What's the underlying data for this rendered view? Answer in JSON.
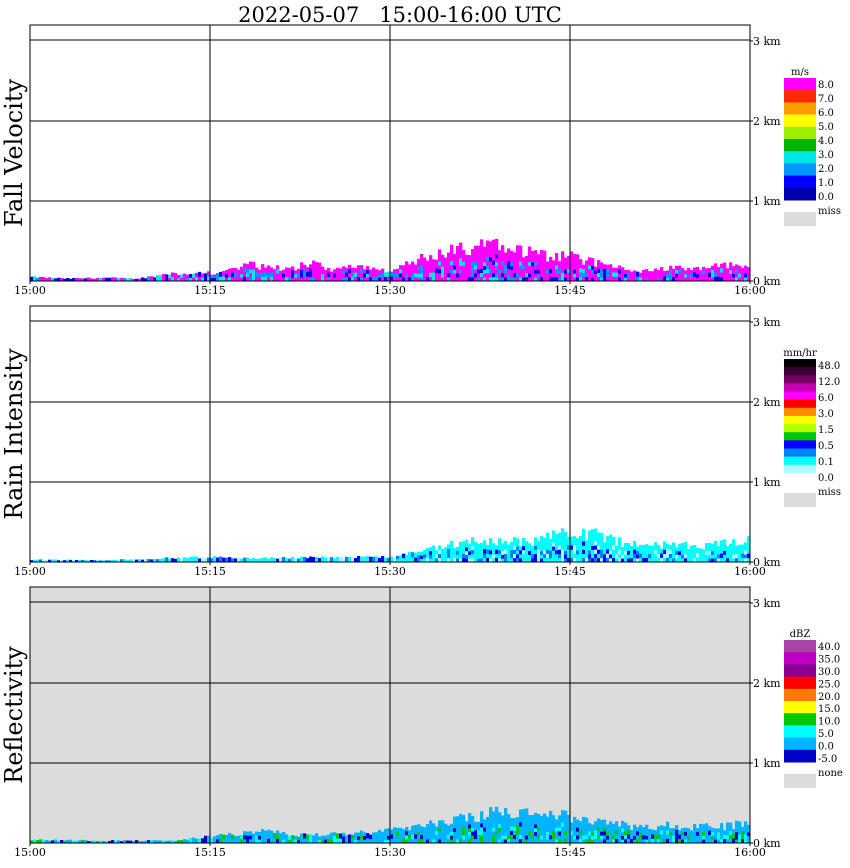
{
  "title": "2022-05-07   15:00-16:00 UTC",
  "x_ticks": [
    "15:00",
    "15:15",
    "15:30",
    "15:45",
    "16:00"
  ],
  "y_ticks": [
    "0 km",
    "1 km",
    "2 km",
    "3 km"
  ],
  "colors": {
    "missing": "#dcdcdc",
    "frame": "#000000",
    "background": "#ffffff"
  },
  "chart_data": [
    {
      "type": "heatmap",
      "title": "Fall Velocity",
      "xlabel": "",
      "ylabel": "Fall Velocity",
      "x_range": [
        "15:00",
        "16:00"
      ],
      "y_range_km": [
        0,
        3.2
      ],
      "grid": true,
      "legend": {
        "unit": "m/s",
        "labels": [
          "8.0",
          "7.0",
          "6.0",
          "5.0",
          "4.0",
          "3.0",
          "2.0",
          "1.0",
          "0.0"
        ],
        "colors": [
          "#ff00ff",
          "#ff2a00",
          "#ff9c00",
          "#ffff00",
          "#9bf000",
          "#00b400",
          "#00e6e6",
          "#0096ff",
          "#0000ff",
          "#0000aa"
        ],
        "miss_label": "miss"
      },
      "echo": {
        "max_top_km": 0.45,
        "dominant_colors": [
          "#ff00ff",
          "#0000ff",
          "#00e6e6",
          "#0096ff"
        ],
        "profile": [
          [
            0,
            0.05
          ],
          [
            5,
            0.03
          ],
          [
            10,
            0.04
          ],
          [
            15,
            0.03
          ],
          [
            20,
            0.1
          ],
          [
            25,
            0.1
          ],
          [
            28,
            0.13
          ],
          [
            30,
            0.2
          ],
          [
            33,
            0.18
          ],
          [
            36,
            0.15
          ],
          [
            39,
            0.22
          ],
          [
            42,
            0.15
          ],
          [
            45,
            0.2
          ],
          [
            48,
            0.15
          ],
          [
            50,
            0.1
          ],
          [
            52,
            0.2
          ],
          [
            55,
            0.3
          ],
          [
            57,
            0.35
          ],
          [
            60,
            0.4
          ],
          [
            62,
            0.42
          ],
          [
            65,
            0.45
          ],
          [
            67,
            0.38
          ],
          [
            70,
            0.35
          ],
          [
            73,
            0.3
          ],
          [
            75,
            0.3
          ],
          [
            78,
            0.25
          ],
          [
            80,
            0.2
          ],
          [
            83,
            0.15
          ],
          [
            85,
            0.12
          ],
          [
            88,
            0.15
          ],
          [
            90,
            0.18
          ],
          [
            93,
            0.15
          ],
          [
            95,
            0.18
          ],
          [
            98,
            0.2
          ],
          [
            100,
            0.22
          ]
        ]
      }
    },
    {
      "type": "heatmap",
      "title": "Rain Intensity",
      "xlabel": "",
      "ylabel": "Rain Intensity",
      "x_range": [
        "15:00",
        "16:00"
      ],
      "y_range_km": [
        0,
        3.2
      ],
      "grid": true,
      "legend": {
        "unit": "mm/hr",
        "labels": [
          "48.0",
          "12.0",
          "6.0",
          "3.0",
          "1.5",
          "0.5",
          "0.1",
          "0.0"
        ],
        "colors": [
          "#000000",
          "#3c0032",
          "#780064",
          "#c800b4",
          "#ff00ff",
          "#ff0000",
          "#ff8c00",
          "#ffff00",
          "#b4ff00",
          "#00c800",
          "#0000ff",
          "#0080ff",
          "#00ffff",
          "#aaffff",
          "#ffffff"
        ],
        "miss_label": "miss"
      },
      "echo": {
        "max_top_km": 0.5,
        "dominant_colors": [
          "#00ffff",
          "#aaffff",
          "#0000ff",
          "#0080ff"
        ],
        "profile": [
          [
            0,
            0.03
          ],
          [
            10,
            0.02
          ],
          [
            20,
            0.05
          ],
          [
            25,
            0.06
          ],
          [
            30,
            0.05
          ],
          [
            35,
            0.05
          ],
          [
            40,
            0.06
          ],
          [
            45,
            0.06
          ],
          [
            50,
            0.06
          ],
          [
            55,
            0.15
          ],
          [
            58,
            0.2
          ],
          [
            62,
            0.28
          ],
          [
            66,
            0.25
          ],
          [
            70,
            0.25
          ],
          [
            74,
            0.35
          ],
          [
            78,
            0.35
          ],
          [
            82,
            0.25
          ],
          [
            86,
            0.2
          ],
          [
            90,
            0.22
          ],
          [
            94,
            0.2
          ],
          [
            98,
            0.25
          ],
          [
            100,
            0.28
          ]
        ]
      }
    },
    {
      "type": "heatmap",
      "title": "Reflectivity",
      "xlabel": "",
      "ylabel": "Reflectivity",
      "x_range": [
        "15:00",
        "16:00"
      ],
      "y_range_km": [
        0,
        3.2
      ],
      "grid": true,
      "legend": {
        "unit": "dBZ",
        "labels": [
          "40.0",
          "35.0",
          "30.0",
          "25.0",
          "20.0",
          "15.0",
          "10.0",
          "5.0",
          "0.0",
          "-5.0"
        ],
        "colors": [
          "#aa44aa",
          "#c000c0",
          "#8c0096",
          "#ff0000",
          "#ff7a00",
          "#ffff00",
          "#00c800",
          "#00ffff",
          "#00b4ff",
          "#0000c8"
        ],
        "miss_label": "none"
      },
      "echo": {
        "max_top_km": 0.45,
        "dominant_colors": [
          "#00b4ff",
          "#00ffff",
          "#0000c8",
          "#00c800"
        ],
        "profile": [
          [
            0,
            0.04
          ],
          [
            10,
            0.03
          ],
          [
            20,
            0.03
          ],
          [
            25,
            0.08
          ],
          [
            30,
            0.12
          ],
          [
            33,
            0.15
          ],
          [
            36,
            0.1
          ],
          [
            40,
            0.1
          ],
          [
            45,
            0.12
          ],
          [
            50,
            0.15
          ],
          [
            53,
            0.2
          ],
          [
            56,
            0.25
          ],
          [
            60,
            0.3
          ],
          [
            63,
            0.35
          ],
          [
            66,
            0.4
          ],
          [
            70,
            0.35
          ],
          [
            73,
            0.38
          ],
          [
            76,
            0.3
          ],
          [
            80,
            0.25
          ],
          [
            84,
            0.2
          ],
          [
            88,
            0.22
          ],
          [
            92,
            0.2
          ],
          [
            96,
            0.2
          ],
          [
            100,
            0.25
          ]
        ]
      }
    }
  ]
}
